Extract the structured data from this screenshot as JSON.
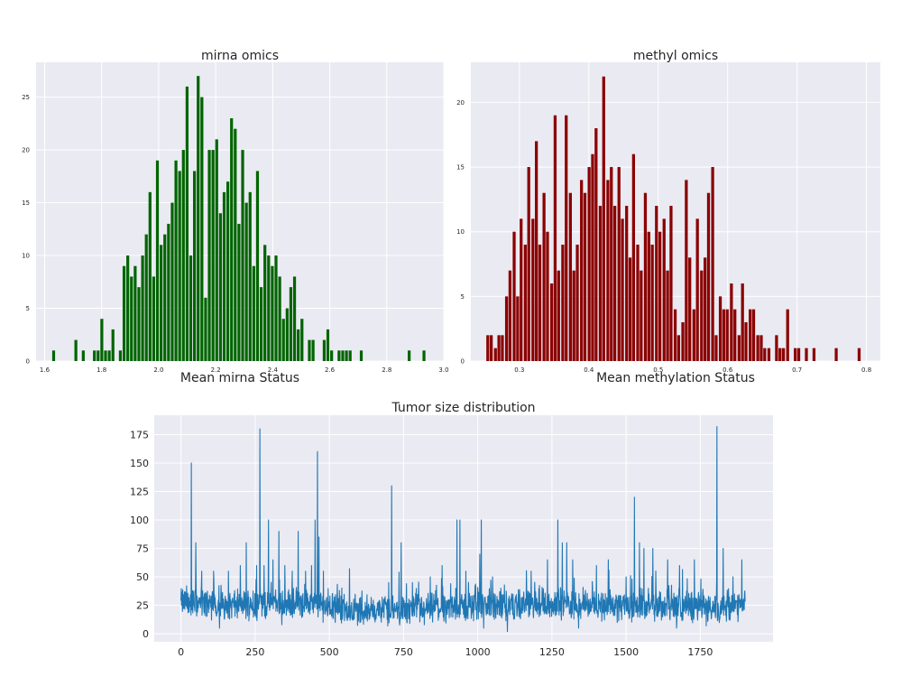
{
  "chart_data": [
    {
      "type": "bar",
      "subtype": "histogram",
      "title": "mirna omics",
      "xlabel": "Mean mirna Status",
      "ylabel": "",
      "xlim": [
        1.57,
        3.0
      ],
      "ylim": [
        0,
        28.3
      ],
      "xticks": [
        "1.6",
        "1.8",
        "2.0",
        "2.2",
        "2.4",
        "2.6",
        "2.8",
        "3.0"
      ],
      "xtick_values": [
        1.6,
        1.8,
        2.0,
        2.2,
        2.4,
        2.6,
        2.8,
        3.0
      ],
      "yticks": [
        "0",
        "5",
        "10",
        "15",
        "20",
        "25"
      ],
      "ytick_values": [
        0,
        5,
        10,
        15,
        20,
        25
      ],
      "bar_color": "#006400",
      "bin_width": 0.013,
      "bins": [
        [
          1.633,
          1
        ],
        [
          1.711,
          2
        ],
        [
          1.737,
          1
        ],
        [
          1.776,
          1
        ],
        [
          1.789,
          1
        ],
        [
          1.802,
          4
        ],
        [
          1.815,
          1
        ],
        [
          1.828,
          1
        ],
        [
          1.841,
          3
        ],
        [
          1.867,
          1
        ],
        [
          1.88,
          9
        ],
        [
          1.893,
          10
        ],
        [
          1.906,
          8
        ],
        [
          1.919,
          9
        ],
        [
          1.932,
          7
        ],
        [
          1.945,
          10
        ],
        [
          1.958,
          12
        ],
        [
          1.971,
          16
        ],
        [
          1.984,
          8
        ],
        [
          1.997,
          19
        ],
        [
          2.01,
          11
        ],
        [
          2.023,
          12
        ],
        [
          2.036,
          13
        ],
        [
          2.049,
          15
        ],
        [
          2.062,
          19
        ],
        [
          2.075,
          18
        ],
        [
          2.088,
          20
        ],
        [
          2.101,
          26
        ],
        [
          2.114,
          10
        ],
        [
          2.127,
          18
        ],
        [
          2.14,
          27
        ],
        [
          2.153,
          25
        ],
        [
          2.166,
          6
        ],
        [
          2.179,
          20
        ],
        [
          2.192,
          20
        ],
        [
          2.205,
          21
        ],
        [
          2.218,
          14
        ],
        [
          2.231,
          16
        ],
        [
          2.244,
          17
        ],
        [
          2.257,
          23
        ],
        [
          2.27,
          22
        ],
        [
          2.283,
          13
        ],
        [
          2.296,
          20
        ],
        [
          2.309,
          15
        ],
        [
          2.322,
          16
        ],
        [
          2.335,
          9
        ],
        [
          2.348,
          18
        ],
        [
          2.361,
          7
        ],
        [
          2.374,
          11
        ],
        [
          2.387,
          10
        ],
        [
          2.4,
          9
        ],
        [
          2.413,
          10
        ],
        [
          2.426,
          8
        ],
        [
          2.439,
          4
        ],
        [
          2.452,
          5
        ],
        [
          2.465,
          7
        ],
        [
          2.478,
          8
        ],
        [
          2.491,
          3
        ],
        [
          2.504,
          4
        ],
        [
          2.53,
          2
        ],
        [
          2.543,
          2
        ],
        [
          2.582,
          2
        ],
        [
          2.595,
          3
        ],
        [
          2.608,
          1
        ],
        [
          2.634,
          1
        ],
        [
          2.647,
          1
        ],
        [
          2.66,
          1
        ],
        [
          2.673,
          1
        ],
        [
          2.712,
          1
        ],
        [
          2.88,
          1
        ],
        [
          2.932,
          1
        ]
      ]
    },
    {
      "type": "bar",
      "subtype": "histogram",
      "title": "methyl omics",
      "xlabel": "Mean methylation Status",
      "ylabel": "",
      "xlim": [
        0.23,
        0.82
      ],
      "ylim": [
        0,
        23.1
      ],
      "xticks": [
        "0.3",
        "0.4",
        "0.5",
        "0.6",
        "0.7",
        "0.8"
      ],
      "xtick_values": [
        0.3,
        0.4,
        0.5,
        0.6,
        0.7,
        0.8
      ],
      "yticks": [
        "0",
        "5",
        "10",
        "15",
        "20"
      ],
      "ytick_values": [
        0,
        5,
        10,
        15,
        20
      ],
      "bar_color": "#8b0000",
      "bin_width": 0.0054,
      "bins": [
        [
          0.255,
          2
        ],
        [
          0.26,
          2
        ],
        [
          0.266,
          1
        ],
        [
          0.271,
          2
        ],
        [
          0.276,
          2
        ],
        [
          0.282,
          5
        ],
        [
          0.287,
          7
        ],
        [
          0.293,
          10
        ],
        [
          0.298,
          5
        ],
        [
          0.303,
          11
        ],
        [
          0.309,
          9
        ],
        [
          0.314,
          15
        ],
        [
          0.32,
          11
        ],
        [
          0.325,
          17
        ],
        [
          0.33,
          9
        ],
        [
          0.336,
          13
        ],
        [
          0.341,
          10
        ],
        [
          0.347,
          6
        ],
        [
          0.352,
          19
        ],
        [
          0.357,
          7
        ],
        [
          0.363,
          9
        ],
        [
          0.368,
          19
        ],
        [
          0.374,
          13
        ],
        [
          0.379,
          7
        ],
        [
          0.384,
          9
        ],
        [
          0.39,
          14
        ],
        [
          0.395,
          13
        ],
        [
          0.401,
          15
        ],
        [
          0.406,
          16
        ],
        [
          0.411,
          18
        ],
        [
          0.417,
          12
        ],
        [
          0.422,
          22
        ],
        [
          0.428,
          14
        ],
        [
          0.433,
          15
        ],
        [
          0.438,
          12
        ],
        [
          0.444,
          15
        ],
        [
          0.449,
          11
        ],
        [
          0.455,
          12
        ],
        [
          0.46,
          8
        ],
        [
          0.465,
          16
        ],
        [
          0.471,
          9
        ],
        [
          0.476,
          7
        ],
        [
          0.482,
          13
        ],
        [
          0.487,
          10
        ],
        [
          0.492,
          9
        ],
        [
          0.498,
          12
        ],
        [
          0.503,
          10
        ],
        [
          0.509,
          11
        ],
        [
          0.514,
          7
        ],
        [
          0.519,
          12
        ],
        [
          0.525,
          4
        ],
        [
          0.53,
          2
        ],
        [
          0.536,
          3
        ],
        [
          0.541,
          14
        ],
        [
          0.546,
          8
        ],
        [
          0.552,
          4
        ],
        [
          0.557,
          11
        ],
        [
          0.563,
          7
        ],
        [
          0.568,
          8
        ],
        [
          0.573,
          13
        ],
        [
          0.579,
          15
        ],
        [
          0.584,
          2
        ],
        [
          0.59,
          5
        ],
        [
          0.595,
          4
        ],
        [
          0.6,
          4
        ],
        [
          0.606,
          6
        ],
        [
          0.611,
          4
        ],
        [
          0.617,
          2
        ],
        [
          0.622,
          6
        ],
        [
          0.627,
          3
        ],
        [
          0.633,
          4
        ],
        [
          0.638,
          4
        ],
        [
          0.644,
          2
        ],
        [
          0.649,
          2
        ],
        [
          0.654,
          1
        ],
        [
          0.66,
          1
        ],
        [
          0.671,
          2
        ],
        [
          0.676,
          1
        ],
        [
          0.681,
          1
        ],
        [
          0.687,
          4
        ],
        [
          0.698,
          1
        ],
        [
          0.703,
          1
        ],
        [
          0.714,
          1
        ],
        [
          0.725,
          1
        ],
        [
          0.757,
          1
        ],
        [
          0.79,
          1
        ]
      ]
    },
    {
      "type": "line",
      "title": "Tumor size distribution",
      "xlabel": "",
      "ylabel": "",
      "xlim": [
        -90,
        1995
      ],
      "ylim": [
        -7,
        192
      ],
      "xticks": [
        "0",
        "250",
        "500",
        "750",
        "1000",
        "1250",
        "1500",
        "1750"
      ],
      "xtick_values": [
        0,
        250,
        500,
        750,
        1000,
        1250,
        1500,
        1750
      ],
      "yticks": [
        "0",
        "25",
        "50",
        "75",
        "100",
        "125",
        "150",
        "175"
      ],
      "ytick_values": [
        0,
        25,
        50,
        75,
        100,
        125,
        150,
        175
      ],
      "line_color": "#1f77b4",
      "n_points": 1902,
      "baseline": [
        [
          0,
          28
        ],
        [
          150,
          25
        ],
        [
          300,
          27
        ],
        [
          450,
          26
        ],
        [
          600,
          20
        ],
        [
          800,
          22
        ],
        [
          1000,
          24
        ],
        [
          1250,
          26
        ],
        [
          1500,
          25
        ],
        [
          1700,
          24
        ],
        [
          1900,
          23
        ]
      ],
      "peaks": [
        [
          35,
          150
        ],
        [
          50,
          80
        ],
        [
          70,
          55
        ],
        [
          110,
          55
        ],
        [
          160,
          55
        ],
        [
          200,
          60
        ],
        [
          220,
          80
        ],
        [
          255,
          60
        ],
        [
          266,
          180
        ],
        [
          280,
          60
        ],
        [
          295,
          100
        ],
        [
          310,
          65
        ],
        [
          330,
          90
        ],
        [
          350,
          60
        ],
        [
          375,
          55
        ],
        [
          395,
          90
        ],
        [
          420,
          55
        ],
        [
          440,
          60
        ],
        [
          452,
          100
        ],
        [
          460,
          160
        ],
        [
          465,
          85
        ],
        [
          480,
          55
        ],
        [
          520,
          50
        ],
        [
          700,
          45
        ],
        [
          710,
          130
        ],
        [
          742,
          80
        ],
        [
          780,
          45
        ],
        [
          840,
          50
        ],
        [
          880,
          60
        ],
        [
          930,
          100
        ],
        [
          940,
          100
        ],
        [
          960,
          55
        ],
        [
          1007,
          70
        ],
        [
          1012,
          100
        ],
        [
          1050,
          50
        ],
        [
          1100,
          55
        ],
        [
          1180,
          55
        ],
        [
          1235,
          65
        ],
        [
          1270,
          100
        ],
        [
          1285,
          80
        ],
        [
          1300,
          80
        ],
        [
          1320,
          65
        ],
        [
          1400,
          60
        ],
        [
          1440,
          65
        ],
        [
          1470,
          75
        ],
        [
          1500,
          50
        ],
        [
          1528,
          120
        ],
        [
          1545,
          80
        ],
        [
          1560,
          75
        ],
        [
          1590,
          75
        ],
        [
          1640,
          65
        ],
        [
          1680,
          60
        ],
        [
          1730,
          65
        ],
        [
          1770,
          70
        ],
        [
          1806,
          182
        ],
        [
          1827,
          75
        ],
        [
          1860,
          50
        ],
        [
          1890,
          65
        ]
      ],
      "dips": [
        [
          130,
          5
        ],
        [
          340,
          8
        ],
        [
          520,
          10
        ],
        [
          820,
          8
        ],
        [
          1020,
          5
        ],
        [
          1100,
          2
        ],
        [
          1340,
          5
        ],
        [
          1470,
          10
        ],
        [
          1670,
          5
        ],
        [
          1770,
          7
        ],
        [
          1850,
          12
        ]
      ]
    }
  ]
}
